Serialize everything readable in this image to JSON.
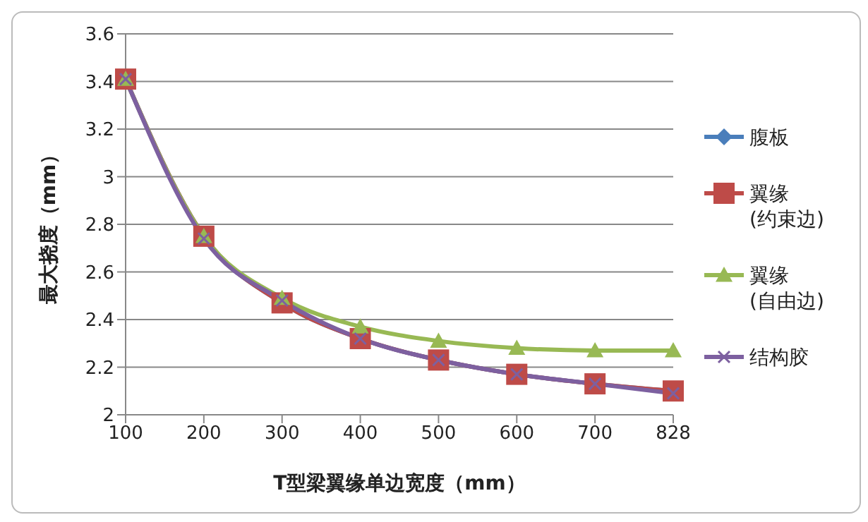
{
  "chart_data": {
    "type": "line",
    "xlabel": "T型梁翼缘单边宽度（mm）",
    "ylabel": "最大挠度（mm）",
    "categories": [
      "100",
      "200",
      "300",
      "400",
      "500",
      "600",
      "700",
      "828"
    ],
    "series": [
      {
        "name": "腹板",
        "color": "#4a7ebb",
        "marker": "diamond",
        "values": [
          3.41,
          2.75,
          2.47,
          2.32,
          2.23,
          2.17,
          2.13,
          2.1
        ]
      },
      {
        "name": "翼缘(约束边)",
        "color": "#be4b48",
        "marker": "square",
        "values": [
          3.41,
          2.75,
          2.47,
          2.32,
          2.23,
          2.17,
          2.13,
          2.1
        ]
      },
      {
        "name": "翼缘(自由边)",
        "color": "#98b954",
        "marker": "triangle",
        "values": [
          3.41,
          2.75,
          2.49,
          2.37,
          2.31,
          2.28,
          2.27,
          2.27
        ]
      },
      {
        "name": "结构胶",
        "color": "#7d60a0",
        "marker": "cross",
        "values": [
          3.41,
          2.74,
          2.48,
          2.32,
          2.23,
          2.17,
          2.13,
          2.09
        ]
      }
    ],
    "ylim": [
      2,
      3.6
    ],
    "yticks": [
      2,
      2.2,
      2.4,
      2.6,
      2.8,
      3,
      3.2,
      3.4,
      3.6
    ],
    "grid": "y",
    "legend": "right"
  }
}
